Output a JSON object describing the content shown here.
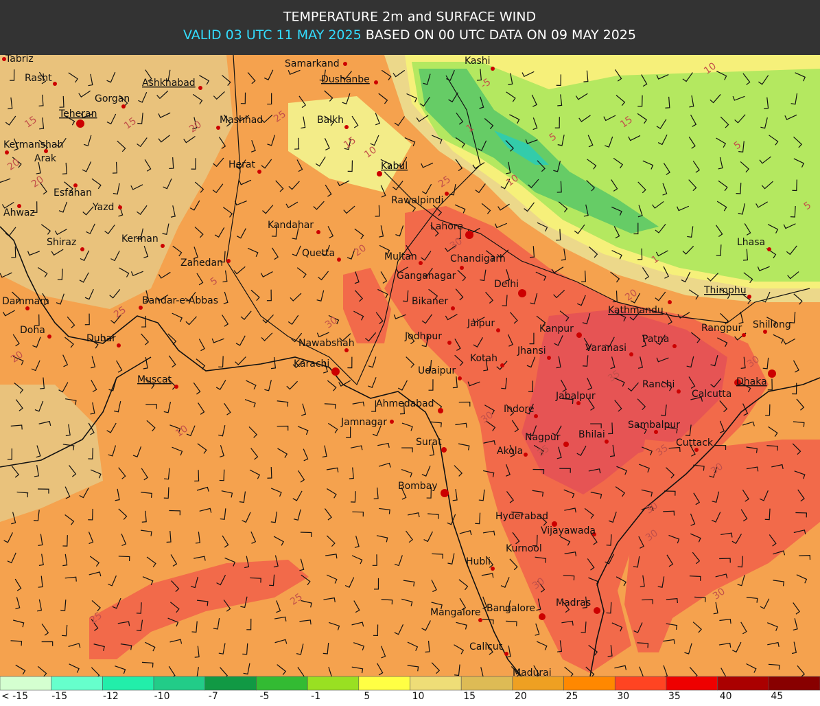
{
  "header": {
    "title": "TEMPERATURE 2m and SURFACE WIND",
    "valid": "VALID 03 UTC 11 MAY 2025",
    "based_on": "BASED ON 00 UTC DATA ON 09 MAY 2025"
  },
  "cities": [
    "Tabriz",
    "Rasht",
    "Gorgan",
    "Ashkhabad",
    "Teheran",
    "Mashhad",
    "Kermanshah",
    "Arak",
    "Esfahan",
    "Yazd",
    "Ahwaz",
    "Shiraz",
    "Kerman",
    "Zahedan",
    "Herat",
    "Kandahar",
    "Quetta",
    "Samarkand",
    "Dushanbe",
    "Balkh",
    "Kabul",
    "Rawalpindi",
    "Kashi",
    "Lahore",
    "Multan",
    "Chandigarh",
    "Ganganagar",
    "Delhi",
    "Bikaner",
    "Dammam",
    "Bandar-e-Abbas",
    "Doha",
    "Dubai",
    "Nawabshah",
    "Karachi",
    "Jaipur",
    "Jodhpur",
    "Kotah",
    "Kanpur",
    "Jhansi",
    "Varanasi",
    "Patna",
    "Kathmandu",
    "Thimphu",
    "Rangpur",
    "Shillong",
    "Lhasa",
    "Muscat",
    "Udaipur",
    "Ahmedabad",
    "Jamnagar",
    "Indore",
    "Jabalpur",
    "Ranchi",
    "Calcutta",
    "Dhaka",
    "Sambalpur",
    "Bhilai",
    "Nagpur",
    "Cuttack",
    "Surat",
    "Akola",
    "Bombay",
    "Hyderabad",
    "Vijayawada",
    "Kurnool",
    "Hubli",
    "Madras",
    "Mangalore",
    "Bangalore",
    "Calicut",
    "Madurai"
  ],
  "contour_labels": [
    15,
    20,
    20,
    15,
    20,
    25,
    25,
    20,
    15,
    10,
    25,
    20,
    30,
    30,
    35,
    35,
    35,
    30,
    30,
    30,
    30,
    30,
    25,
    25,
    10,
    5,
    -5,
    1,
    5,
    10,
    15,
    5,
    5,
    1,
    10,
    20,
    30,
    30
  ],
  "legend": {
    "labels": [
      "< -15",
      -15,
      -12,
      -10,
      -7,
      -5,
      -1,
      5,
      10,
      15,
      20,
      25,
      30,
      35,
      40,
      45
    ],
    "colors": [
      "#d4ffd0",
      "#66ffcc",
      "#22eeaa",
      "#22cc88",
      "#119944",
      "#33bb33",
      "#99e022",
      "#ffff44",
      "#eedd77",
      "#ddbb55",
      "#eea022",
      "#ff8800",
      "#ff4422",
      "#ee0000",
      "#aa0000",
      "#880000"
    ]
  }
}
